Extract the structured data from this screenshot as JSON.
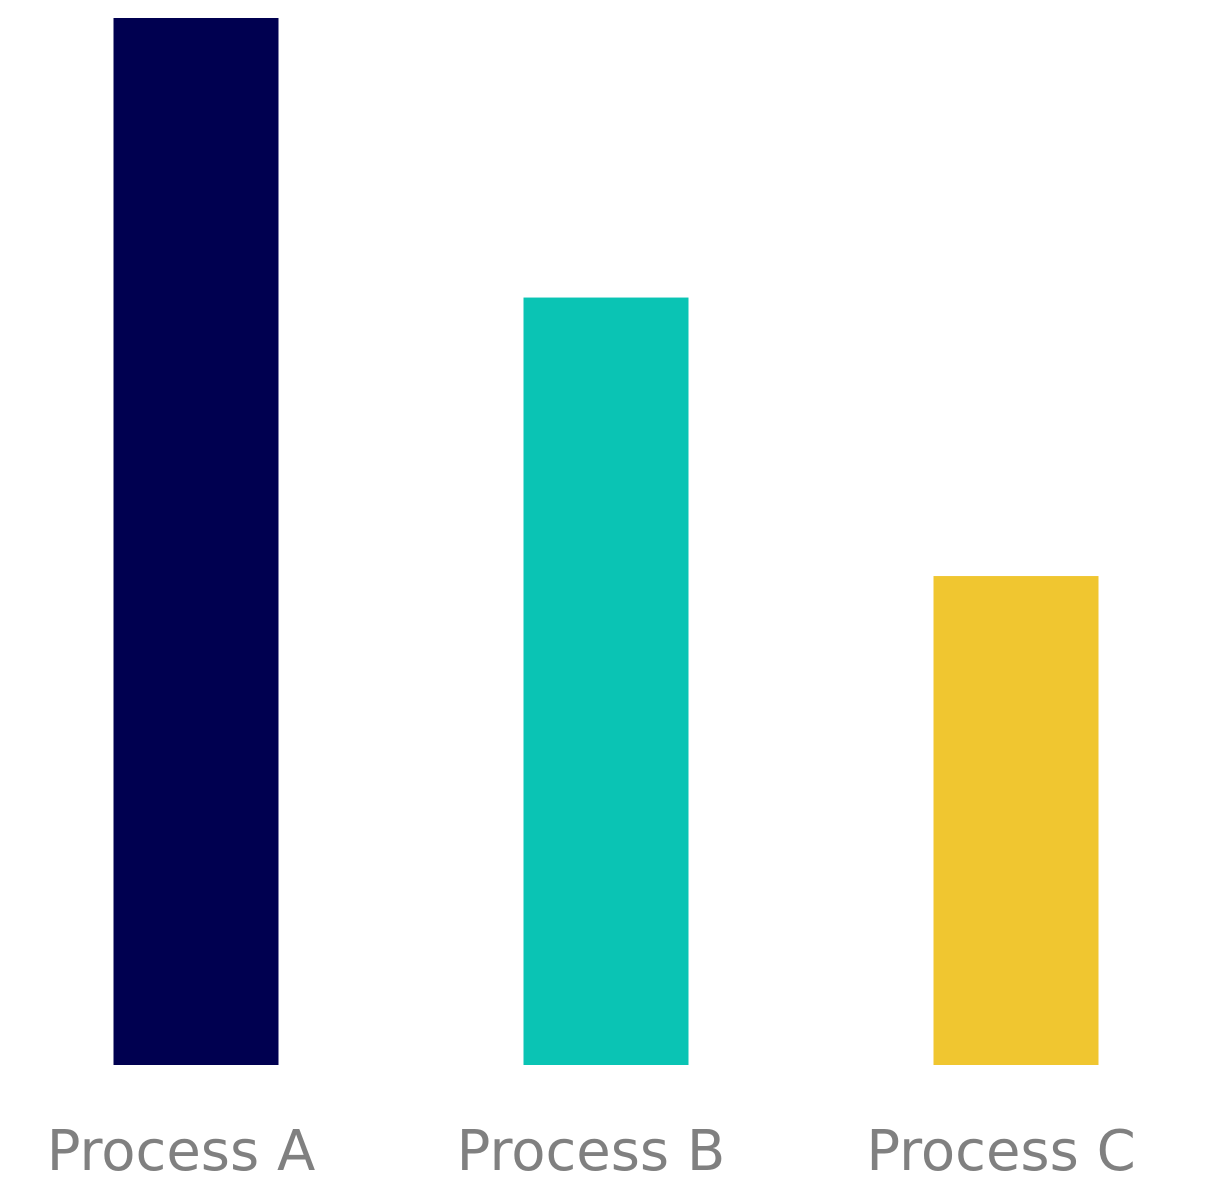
{
  "chart_data": {
    "type": "bar",
    "categories": [
      "Process A",
      "Process B",
      "Process C"
    ],
    "values": [
      100,
      73.3,
      46.7
    ],
    "ylim": [
      0,
      100
    ],
    "grid": false,
    "legend": "none",
    "title": "",
    "xlabel": "",
    "ylabel": "",
    "colors": [
      "#000050",
      "#0AC4B4",
      "#F0C630"
    ]
  }
}
